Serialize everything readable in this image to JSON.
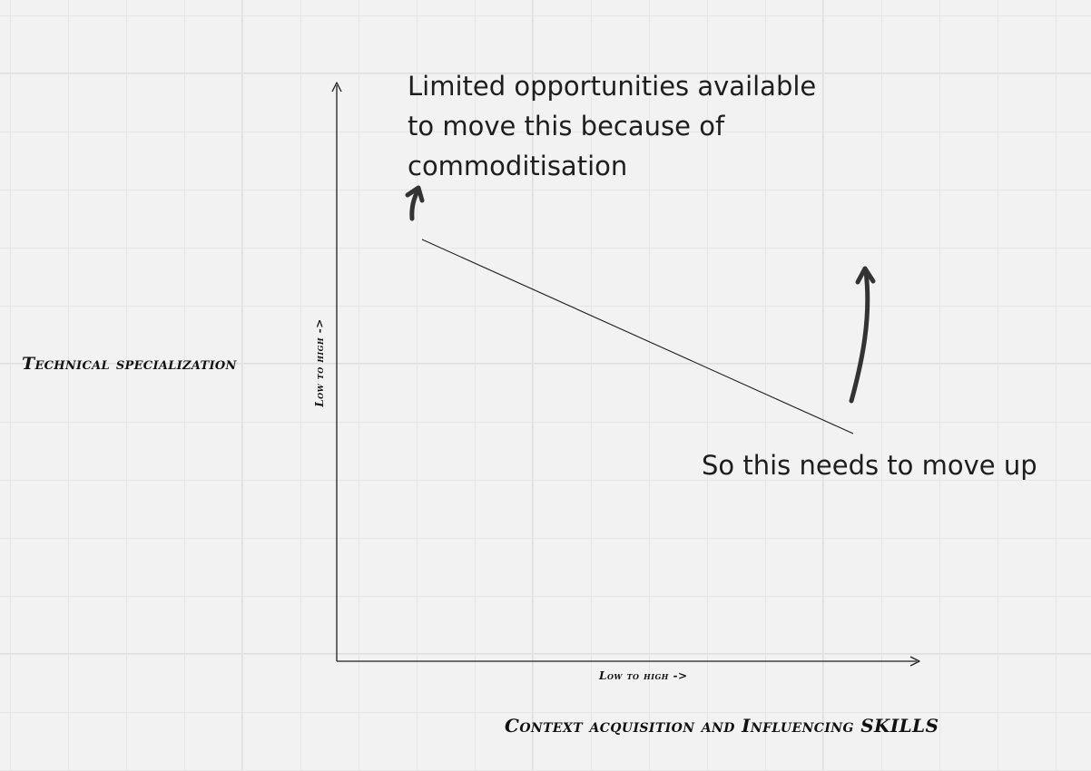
{
  "diagram": {
    "notes": {
      "top": "Limited opportunities available\nto move this because of\ncommoditisation",
      "bottom": "So this needs to move up"
    },
    "axes": {
      "y_title": "Technical specialization",
      "x_title": "Context acquisition and Influencing SKILLS",
      "y_range_label": "Low to high ->",
      "x_range_label": "Low to high ->"
    },
    "colors": {
      "background": "#f2f2f2",
      "grid": "#e6e6e6",
      "ink": "#1e1e1e",
      "arrow": "#333333"
    }
  }
}
